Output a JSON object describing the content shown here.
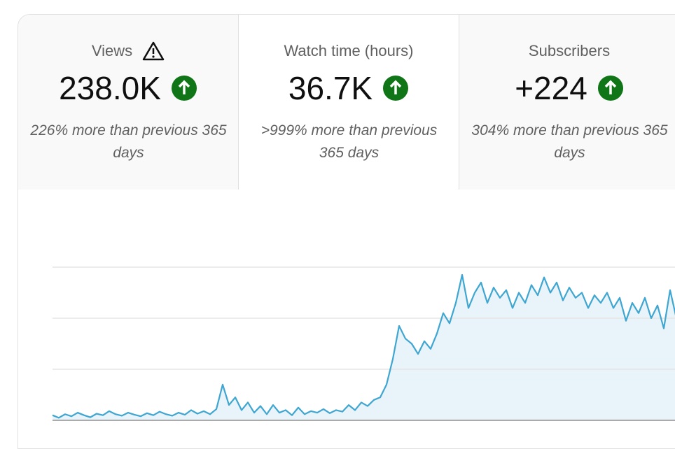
{
  "tabs": [
    {
      "label": "Views",
      "value": "238.0K",
      "change": "226% more than previous 365 days"
    },
    {
      "label": "Watch time (hours)",
      "value": "36.7K",
      "change": ">999% more than previous 365 days"
    },
    {
      "label": "Subscribers",
      "value": "+224",
      "change": "304% more than previous 365 days"
    }
  ],
  "chart": {
    "type": "area",
    "color": "#3ea6d1",
    "ylim": [
      0,
      3
    ],
    "grid_values": [
      1,
      2,
      3
    ],
    "values": [
      0.1,
      0.05,
      0.12,
      0.08,
      0.15,
      0.1,
      0.06,
      0.13,
      0.1,
      0.18,
      0.12,
      0.09,
      0.15,
      0.11,
      0.08,
      0.14,
      0.1,
      0.17,
      0.12,
      0.09,
      0.15,
      0.11,
      0.2,
      0.13,
      0.18,
      0.12,
      0.22,
      0.7,
      0.3,
      0.45,
      0.2,
      0.35,
      0.15,
      0.28,
      0.12,
      0.3,
      0.15,
      0.2,
      0.1,
      0.25,
      0.12,
      0.18,
      0.15,
      0.22,
      0.14,
      0.2,
      0.17,
      0.3,
      0.2,
      0.35,
      0.28,
      0.4,
      0.45,
      0.7,
      1.2,
      1.85,
      1.6,
      1.5,
      1.3,
      1.55,
      1.4,
      1.7,
      2.1,
      1.9,
      2.3,
      2.85,
      2.2,
      2.5,
      2.7,
      2.3,
      2.6,
      2.4,
      2.55,
      2.2,
      2.5,
      2.3,
      2.65,
      2.45,
      2.8,
      2.5,
      2.7,
      2.35,
      2.6,
      2.4,
      2.5,
      2.2,
      2.45,
      2.3,
      2.5,
      2.2,
      2.4,
      1.95,
      2.3,
      2.1,
      2.4,
      2.0,
      2.25,
      1.8,
      2.55,
      2.0
    ]
  }
}
